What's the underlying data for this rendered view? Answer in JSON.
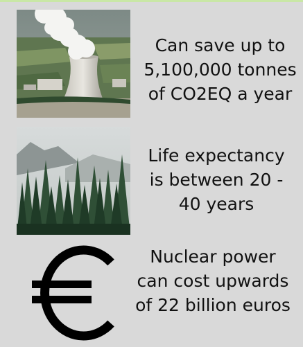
{
  "items": [
    {
      "image_icon": "nuclear-cooling-tower-photo",
      "lines": [
        "Can save up to",
        "5,100,000 tonnes",
        "of CO2EQ a year"
      ]
    },
    {
      "image_icon": "pine-forest-photo",
      "lines": [
        "Life expectancy",
        "is between 20 -",
        "40 years"
      ]
    },
    {
      "image_icon": "euro-icon",
      "lines": [
        "Nuclear power",
        "can cost upwards",
        "of 22 billion euros"
      ]
    }
  ]
}
